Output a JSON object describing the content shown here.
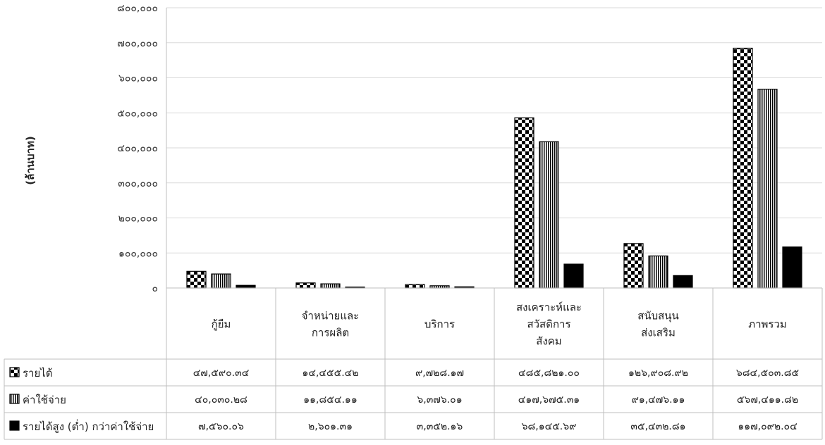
{
  "chart_data": {
    "type": "bar",
    "ylabel": "(ล้านบาท)",
    "ylim": [
      0,
      800000
    ],
    "yticks": [
      "๐",
      "๑๐๐,๐๐๐",
      "๒๐๐,๐๐๐",
      "๓๐๐,๐๐๐",
      "๔๐๐,๐๐๐",
      "๕๐๐,๐๐๐",
      "๖๐๐,๐๐๐",
      "๗๐๐,๐๐๐",
      "๘๐๐,๐๐๐"
    ],
    "ytick_values": [
      0,
      100000,
      200000,
      300000,
      400000,
      500000,
      600000,
      700000,
      800000
    ],
    "grid": true,
    "legend": "data-table",
    "categories": [
      [
        "กู้ยืม"
      ],
      [
        "จำหน่ายและ",
        "การผลิต"
      ],
      [
        "บริการ"
      ],
      [
        "สงเคราะห์และ",
        "สวัสดิการ",
        "สังคม"
      ],
      [
        "สนับสนุน",
        "ส่งเสริม"
      ],
      [
        "ภาพรวม"
      ]
    ],
    "series": [
      {
        "name": "รายได้",
        "pattern": "checker",
        "values": [
          47590.34,
          14455.42,
          9728.17,
          485821.0,
          126908.92,
          684503.85
        ],
        "labels": [
          "๔๗,๕๙๐.๓๔",
          "๑๔,๔๕๕.๔๒",
          "๙,๗๒๘.๑๗",
          "๔๘๕,๘๒๑.๐๐",
          "๑๒๖,๙๐๘.๙๒",
          "๖๘๔,๕๐๓.๘๕"
        ]
      },
      {
        "name": "ค่าใช้จ่าย",
        "pattern": "vstripe",
        "values": [
          40030.28,
          11854.11,
          6376.01,
          417675.31,
          91476.11,
          567411.82
        ],
        "labels": [
          "๔๐,๐๓๐.๒๘",
          "๑๑,๘๕๔.๑๑",
          "๖,๓๗๖.๐๑",
          "๔๑๗,๖๗๕.๓๑",
          "๙๑,๔๗๖.๑๑",
          "๕๖๗,๔๑๑.๘๒"
        ]
      },
      {
        "name": "รายได้สูง (ต่ำ) กว่าค่าใช้จ่าย",
        "pattern": "solid",
        "values": [
          7560.06,
          2601.31,
          3352.16,
          68145.69,
          35432.81,
          117092.04
        ],
        "labels": [
          "๗,๕๖๐.๐๖",
          "๒,๖๐๑.๓๑",
          "๓,๓๕๒.๑๖",
          "๖๘,๑๔๕.๖๙",
          "๓๕,๔๓๒.๘๑",
          "๑๑๗,๐๙๒.๐๔"
        ]
      }
    ]
  }
}
